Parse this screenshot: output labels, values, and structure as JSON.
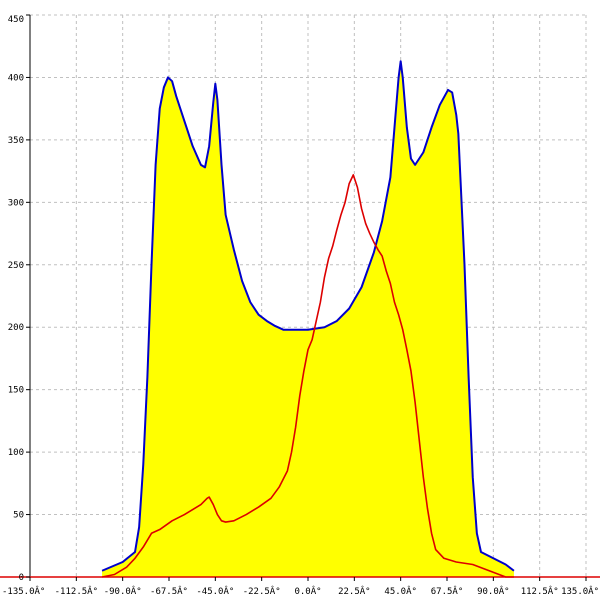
{
  "chart_data": {
    "type": "area",
    "xlim": [
      -135,
      135
    ],
    "ylim": [
      0,
      450
    ],
    "grid": true,
    "x_ticks": [
      -135,
      -112.5,
      -90,
      -67.5,
      -45,
      -22.5,
      0,
      22.5,
      45,
      67.5,
      90,
      112.5,
      135
    ],
    "x_tick_labels": [
      "-135.0Â°",
      "-112.5Â°",
      "-90.0Â°",
      "-67.5Â°",
      "-45.0Â°",
      "-22.5Â°",
      "0.0Â°",
      "22.5Â°",
      "45.0Â°",
      "67.5Â°",
      "90.0Â°",
      "112.5Â°",
      "135.0Â°"
    ],
    "y_ticks": [
      0,
      50,
      100,
      150,
      200,
      250,
      300,
      350,
      400,
      450
    ],
    "y_tick_labels": [
      "0",
      "50",
      "100",
      "150",
      "200",
      "250",
      "300",
      "350",
      "400",
      "450"
    ],
    "series": [
      {
        "style": "filled-area",
        "fill": "#ffff00",
        "stroke": "#0000cc",
        "points": [
          [
            -100,
            5
          ],
          [
            -90,
            12
          ],
          [
            -84,
            20
          ],
          [
            -82,
            40
          ],
          [
            -80,
            90
          ],
          [
            -78,
            160
          ],
          [
            -76,
            250
          ],
          [
            -74,
            330
          ],
          [
            -72,
            375
          ],
          [
            -70,
            392
          ],
          [
            -68,
            400
          ],
          [
            -66,
            397
          ],
          [
            -64,
            385
          ],
          [
            -60,
            365
          ],
          [
            -56,
            345
          ],
          [
            -52,
            330
          ],
          [
            -50,
            328
          ],
          [
            -48,
            345
          ],
          [
            -46,
            380
          ],
          [
            -45,
            395
          ],
          [
            -44,
            382
          ],
          [
            -42,
            330
          ],
          [
            -40,
            290
          ],
          [
            -36,
            262
          ],
          [
            -32,
            237
          ],
          [
            -28,
            220
          ],
          [
            -24,
            210
          ],
          [
            -20,
            205
          ],
          [
            -16,
            201
          ],
          [
            -12,
            198
          ],
          [
            -8,
            198
          ],
          [
            0,
            198
          ],
          [
            8,
            200
          ],
          [
            14,
            205
          ],
          [
            20,
            215
          ],
          [
            26,
            232
          ],
          [
            32,
            260
          ],
          [
            36,
            285
          ],
          [
            40,
            320
          ],
          [
            42,
            360
          ],
          [
            44,
            400
          ],
          [
            45,
            413
          ],
          [
            46,
            400
          ],
          [
            48,
            360
          ],
          [
            50,
            335
          ],
          [
            52,
            330
          ],
          [
            56,
            340
          ],
          [
            60,
            360
          ],
          [
            64,
            378
          ],
          [
            68,
            390
          ],
          [
            70,
            388
          ],
          [
            72,
            370
          ],
          [
            73,
            355
          ],
          [
            74,
            320
          ],
          [
            76,
            250
          ],
          [
            78,
            160
          ],
          [
            80,
            80
          ],
          [
            82,
            35
          ],
          [
            84,
            20
          ],
          [
            90,
            15
          ],
          [
            96,
            10
          ],
          [
            100,
            5
          ]
        ]
      },
      {
        "style": "line",
        "stroke": "#dd0000",
        "points": [
          [
            -100,
            0
          ],
          [
            -94,
            2
          ],
          [
            -88,
            8
          ],
          [
            -84,
            15
          ],
          [
            -80,
            24
          ],
          [
            -76,
            35
          ],
          [
            -72,
            38
          ],
          [
            -66,
            45
          ],
          [
            -60,
            50
          ],
          [
            -55,
            55
          ],
          [
            -52,
            58
          ],
          [
            -49,
            63
          ],
          [
            -48,
            64
          ],
          [
            -46,
            58
          ],
          [
            -44,
            50
          ],
          [
            -42,
            45
          ],
          [
            -40,
            44
          ],
          [
            -36,
            45
          ],
          [
            -30,
            50
          ],
          [
            -24,
            56
          ],
          [
            -18,
            63
          ],
          [
            -14,
            72
          ],
          [
            -10,
            85
          ],
          [
            -8,
            100
          ],
          [
            -6,
            120
          ],
          [
            -4,
            145
          ],
          [
            -2,
            165
          ],
          [
            0,
            182
          ],
          [
            2,
            190
          ],
          [
            4,
            205
          ],
          [
            6,
            220
          ],
          [
            8,
            240
          ],
          [
            10,
            255
          ],
          [
            12,
            265
          ],
          [
            14,
            278
          ],
          [
            16,
            290
          ],
          [
            18,
            300
          ],
          [
            20,
            315
          ],
          [
            22,
            322
          ],
          [
            24,
            312
          ],
          [
            26,
            295
          ],
          [
            28,
            283
          ],
          [
            30,
            275
          ],
          [
            32,
            268
          ],
          [
            34,
            262
          ],
          [
            36,
            257
          ],
          [
            38,
            245
          ],
          [
            40,
            235
          ],
          [
            42,
            220
          ],
          [
            44,
            210
          ],
          [
            46,
            198
          ],
          [
            48,
            182
          ],
          [
            50,
            165
          ],
          [
            52,
            140
          ],
          [
            54,
            110
          ],
          [
            56,
            80
          ],
          [
            58,
            55
          ],
          [
            60,
            35
          ],
          [
            62,
            22
          ],
          [
            66,
            15
          ],
          [
            72,
            12
          ],
          [
            80,
            10
          ],
          [
            88,
            5
          ],
          [
            96,
            0
          ],
          [
            100,
            0
          ]
        ]
      }
    ]
  }
}
